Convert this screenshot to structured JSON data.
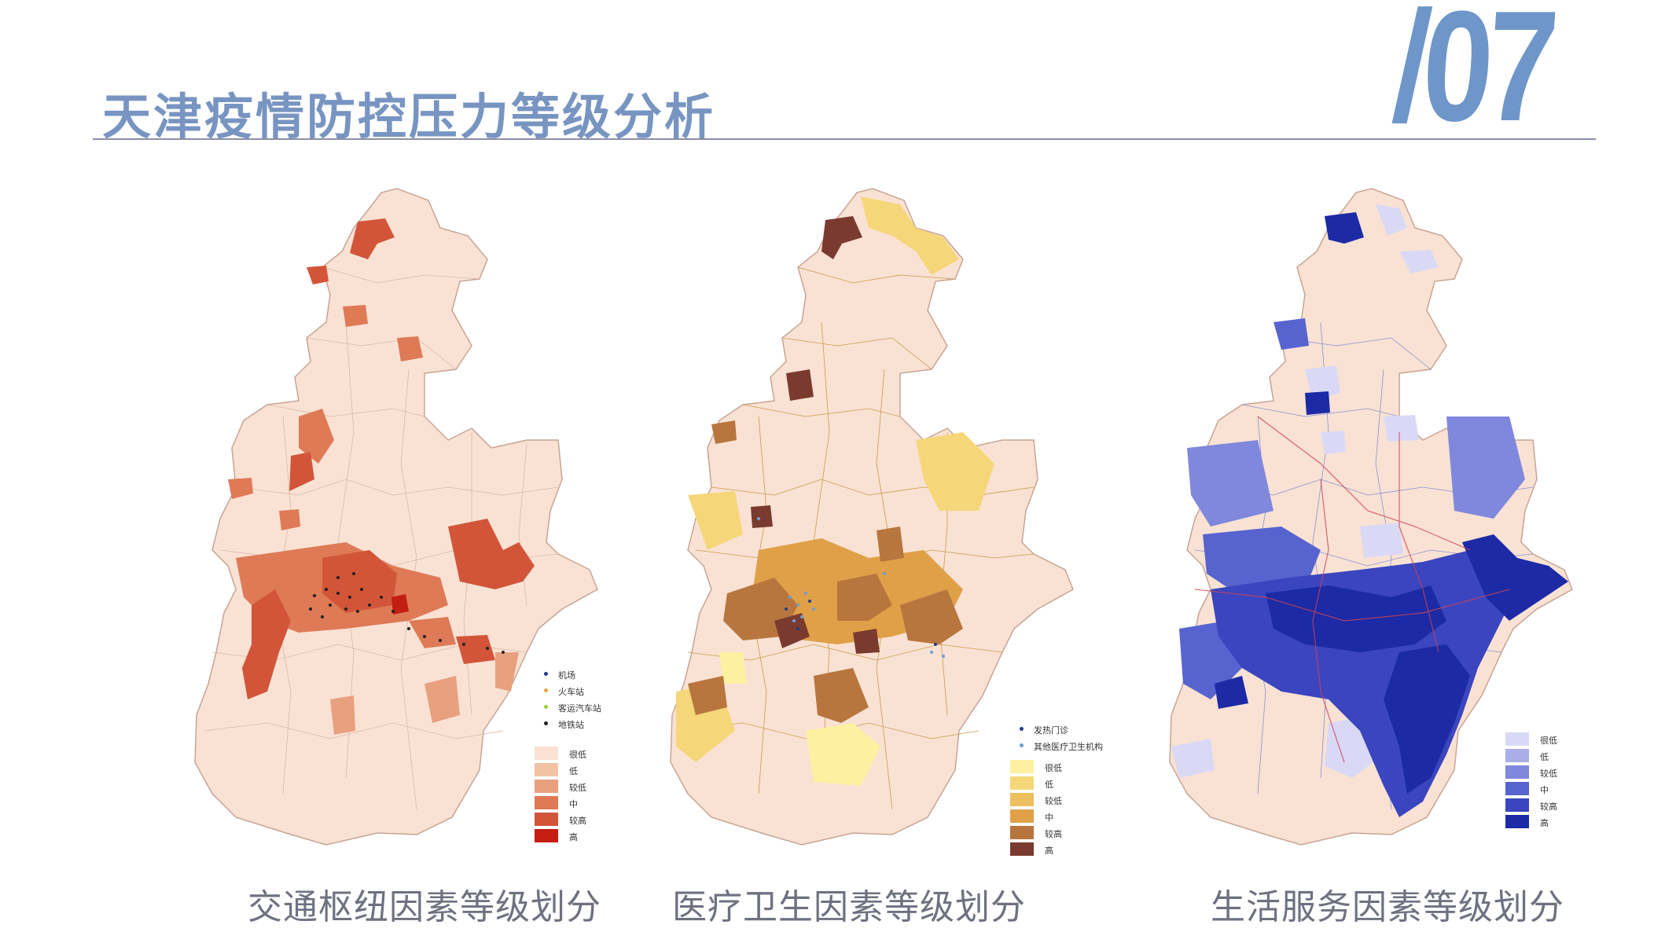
{
  "header": {
    "title": "天津疫情防控压力等级分析",
    "slide_number": "/07"
  },
  "maps": [
    {
      "caption": "交通枢纽因素等级划分",
      "points": [
        {
          "label": "机场",
          "color": "#1f3d8a"
        },
        {
          "label": "火车站",
          "color": "#e8a23a"
        },
        {
          "label": "客运汽车站",
          "color": "#9acd32"
        },
        {
          "label": "地铁站",
          "color": "#222222"
        }
      ],
      "classes": [
        {
          "label": "很低",
          "color": "#f9e2d4"
        },
        {
          "label": "低",
          "color": "#f2c2a4"
        },
        {
          "label": "较低",
          "color": "#e9a07e"
        },
        {
          "label": "中",
          "color": "#de7a56"
        },
        {
          "label": "较高",
          "color": "#d2553a"
        },
        {
          "label": "高",
          "color": "#c41d12"
        }
      ]
    },
    {
      "caption": "医疗卫生因素等级划分",
      "points": [
        {
          "label": "发热门诊",
          "color": "#1f3d8a"
        },
        {
          "label": "其他医疗卫生机构",
          "color": "#6a9fd4"
        }
      ],
      "classes": [
        {
          "label": "很低",
          "color": "#fdf0a0"
        },
        {
          "label": "低",
          "color": "#f5d77a"
        },
        {
          "label": "较低",
          "color": "#edbf5e"
        },
        {
          "label": "中",
          "color": "#dfa048"
        },
        {
          "label": "较高",
          "color": "#b8763e"
        },
        {
          "label": "高",
          "color": "#7a3b2e"
        }
      ]
    },
    {
      "caption": "生活服务因素等级划分",
      "classes": [
        {
          "label": "很低",
          "color": "#d9d9f5"
        },
        {
          "label": "低",
          "color": "#a9aee9"
        },
        {
          "label": "较低",
          "color": "#7f88dc"
        },
        {
          "label": "中",
          "color": "#5763cf"
        },
        {
          "label": "较高",
          "color": "#3a45bf"
        },
        {
          "label": "高",
          "color": "#1c2aa6"
        }
      ]
    }
  ]
}
